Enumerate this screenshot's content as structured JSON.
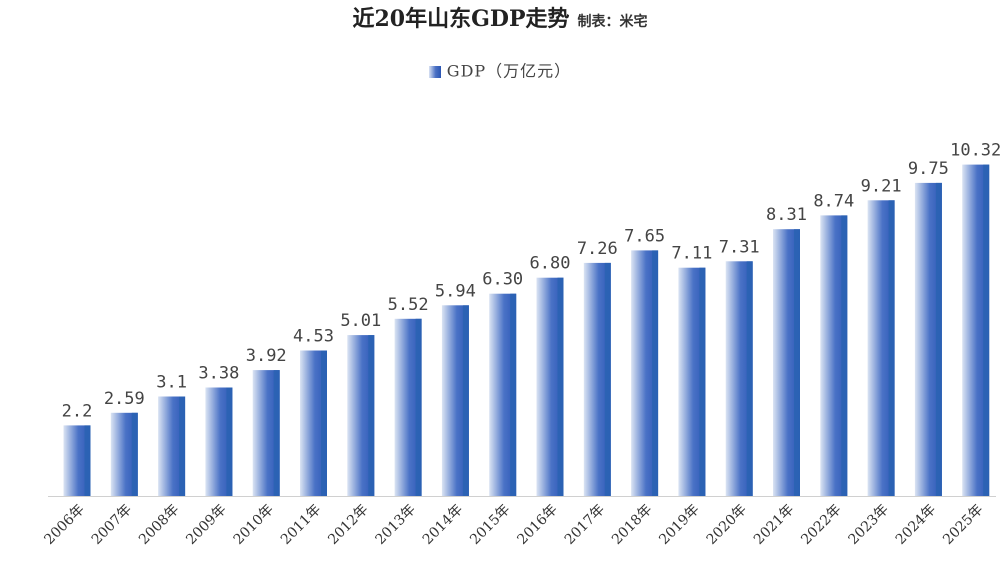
{
  "header": {
    "title": "近20年山东GDP走势",
    "subtitle": "制表：米宅"
  },
  "legend": {
    "label": "GDP（万亿元）"
  },
  "colors": {
    "bar_light": "#dbe4f3",
    "bar_mid": "#4a72c6",
    "bar_dark": "#2c58b6",
    "bar_edge": "#2a63b3",
    "axis": "#d0d0d0"
  },
  "chart_data": {
    "type": "bar",
    "title": "近20年山东GDP走势",
    "subtitle": "制表：米宅",
    "xlabel": "",
    "ylabel": "",
    "ylim": [
      0,
      10.9
    ],
    "grid": false,
    "legend_position": "top-center",
    "categories": [
      "2006年",
      "2007年",
      "2008年",
      "2009年",
      "2010年",
      "2011年",
      "2012年",
      "2013年",
      "2014年",
      "2015年",
      "2016年",
      "2017年",
      "2018年",
      "2019年",
      "2020年",
      "2021年",
      "2022年",
      "2023年",
      "2024年",
      "2025年"
    ],
    "series": [
      {
        "name": "GDP（万亿元）",
        "values": [
          2.2,
          2.59,
          3.1,
          3.38,
          3.92,
          4.53,
          5.01,
          5.52,
          5.94,
          6.3,
          6.8,
          7.26,
          7.65,
          7.11,
          7.31,
          8.31,
          8.74,
          9.21,
          9.75,
          10.32
        ],
        "labels": [
          "2.2",
          "2.59",
          "3.1",
          "3.38",
          "3.92",
          "4.53",
          "5.01",
          "5.52",
          "5.94",
          "6.30",
          "6.80",
          "7.26",
          "7.65",
          "7.11",
          "7.31",
          "8.31",
          "8.74",
          "9.21",
          "9.75",
          "10.32"
        ]
      }
    ]
  }
}
